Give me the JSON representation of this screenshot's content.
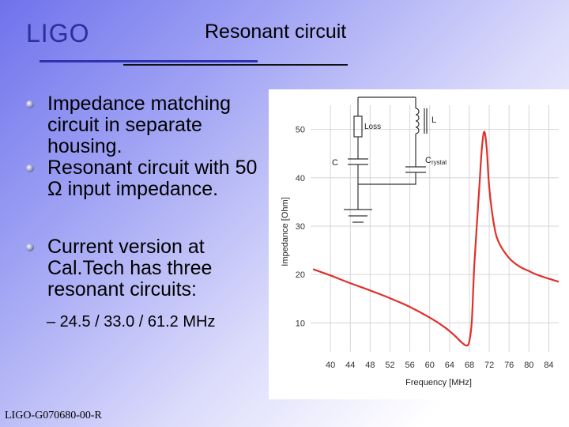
{
  "logo": "LIGO",
  "title": "Resonant circuit",
  "bullets": [
    "Impedance matching circuit in separate housing.",
    "Resonant circuit with 50 Ω input impedance.",
    "Current version at Cal.Tech has three resonant circuits:"
  ],
  "sub_bullet": "– 24.5 / 33.0 / 61.2 MHz",
  "footer": "LIGO-G070680-00-R",
  "colors": {
    "logo": "#2b2f9c",
    "curve": "#e0302a",
    "rule": "#2f32b0"
  },
  "circuit": {
    "loss_label": "Loss",
    "l_label": "L",
    "c_label": "C",
    "crystal_label_main": "C",
    "crystal_label_sub": "rystal"
  },
  "chart_data": {
    "type": "line",
    "xlabel": "Frequency [MHz]",
    "ylabel": "Impedance [Ohm]",
    "xlim": [
      36,
      86
    ],
    "ylim": [
      4,
      55
    ],
    "xticks": [
      40,
      44,
      48,
      52,
      56,
      60,
      64,
      68,
      72,
      76,
      80,
      84
    ],
    "yticks": [
      10,
      20,
      30,
      40,
      50
    ],
    "grid": true,
    "series": [
      {
        "x": [
          36.5,
          40,
          44,
          48,
          52,
          56,
          60,
          63,
          65,
          66.5,
          67.5,
          68,
          68.5,
          69,
          70,
          70.5,
          71,
          71.5,
          72,
          73,
          74,
          76,
          78,
          80,
          82,
          86
        ],
        "y": [
          21.1,
          19.8,
          18.2,
          16.7,
          15.1,
          13.3,
          11.1,
          9.1,
          7.4,
          5.9,
          5.3,
          6.3,
          10.5,
          22,
          38,
          46,
          49.5,
          46,
          38,
          30,
          26.5,
          23.4,
          21.7,
          20.7,
          19.8,
          18.5
        ]
      }
    ]
  }
}
